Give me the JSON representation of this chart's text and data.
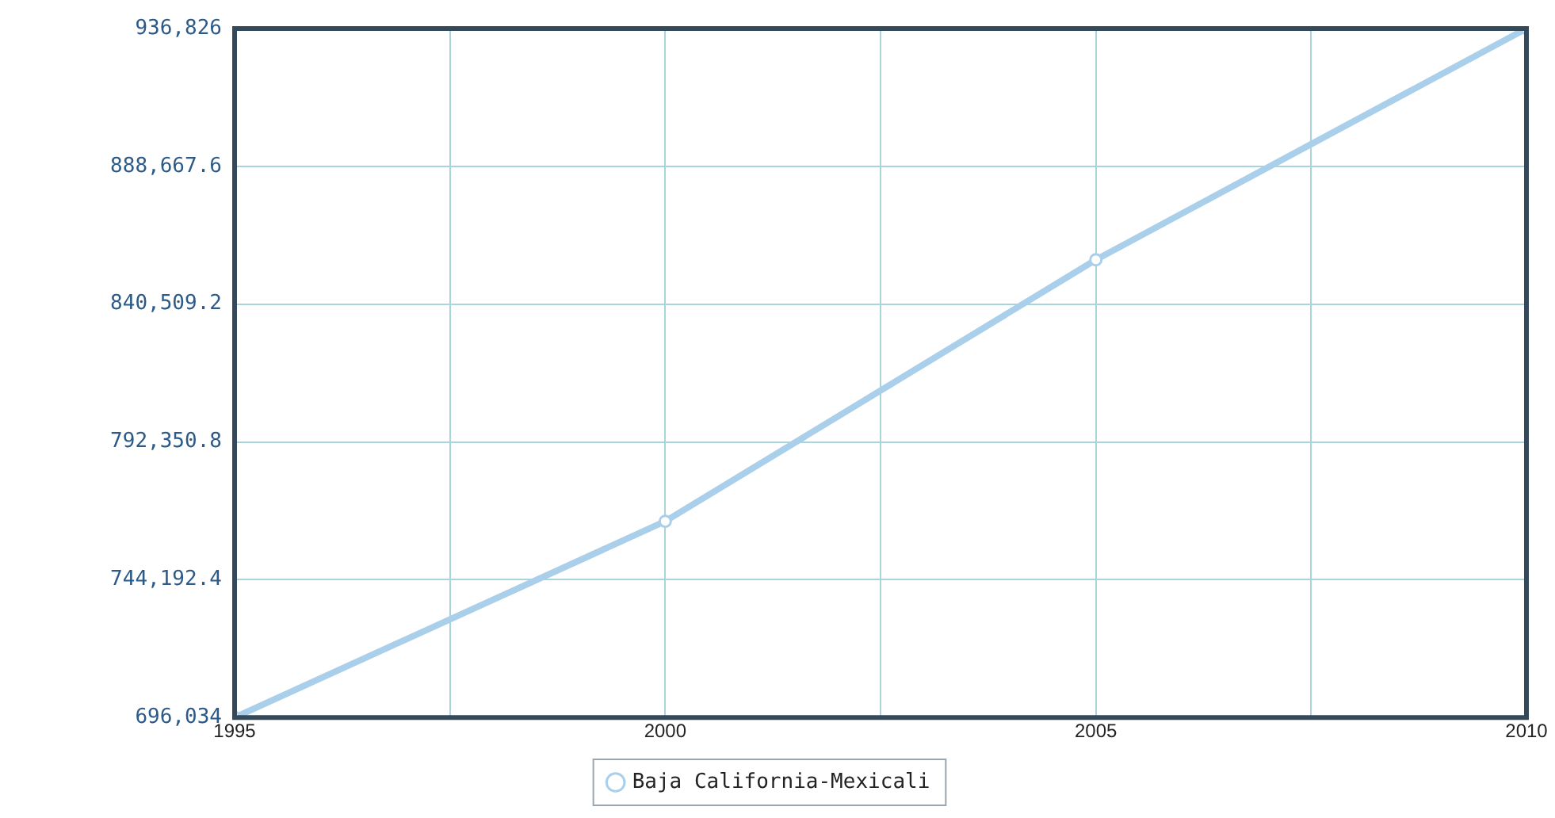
{
  "chart_data": {
    "type": "line",
    "x": [
      1995,
      2000,
      2005,
      2010
    ],
    "series": [
      {
        "name": "Baja California-Mexicali",
        "color": "#a9cfea",
        "values": [
          696034,
          764600,
          856000,
          936826
        ]
      }
    ],
    "xlim": [
      1995,
      2010
    ],
    "xticks": [
      1995,
      {
        "value": 1997.5,
        "label": null
      },
      2000,
      {
        "value": 2002.5,
        "label": null
      },
      2005,
      {
        "value": 2007.5,
        "label": null
      },
      2010
    ],
    "ylim": [
      696034,
      936826
    ],
    "yticks": [
      {
        "value": 696034,
        "label": "696,034"
      },
      {
        "value": 744192.4,
        "label": "744,192.4"
      },
      {
        "value": 792350.8,
        "label": "792,350.8"
      },
      {
        "value": 840509.2,
        "label": "840,509.2"
      },
      {
        "value": 888667.6,
        "label": "888,667.6"
      },
      {
        "value": 936826,
        "label": "936,826"
      }
    ],
    "grid": true,
    "legend": "bottom",
    "marker": "circle",
    "line_style": "solid"
  }
}
